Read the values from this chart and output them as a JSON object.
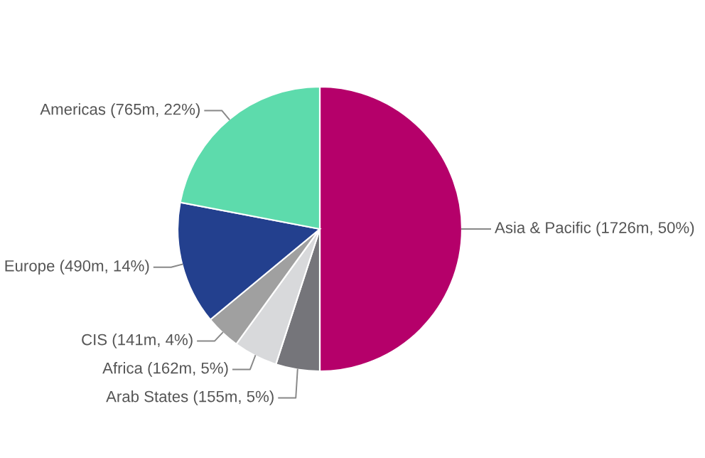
{
  "chart_data": {
    "type": "pie",
    "categories": [
      "Asia & Pacific (1726m, 50%)",
      "Arab States (155m, 5%)",
      "Africa (162m, 5%)",
      "CIS (141m, 4%)",
      "Europe (490m, 14%)",
      "Americas (765m, 22%)"
    ],
    "values": [
      50,
      5,
      5,
      4,
      14,
      22
    ],
    "colors": [
      "#b5006a",
      "#75757a",
      "#d8d9db",
      "#a0a0a0",
      "#23408e",
      "#5ddbac"
    ]
  }
}
